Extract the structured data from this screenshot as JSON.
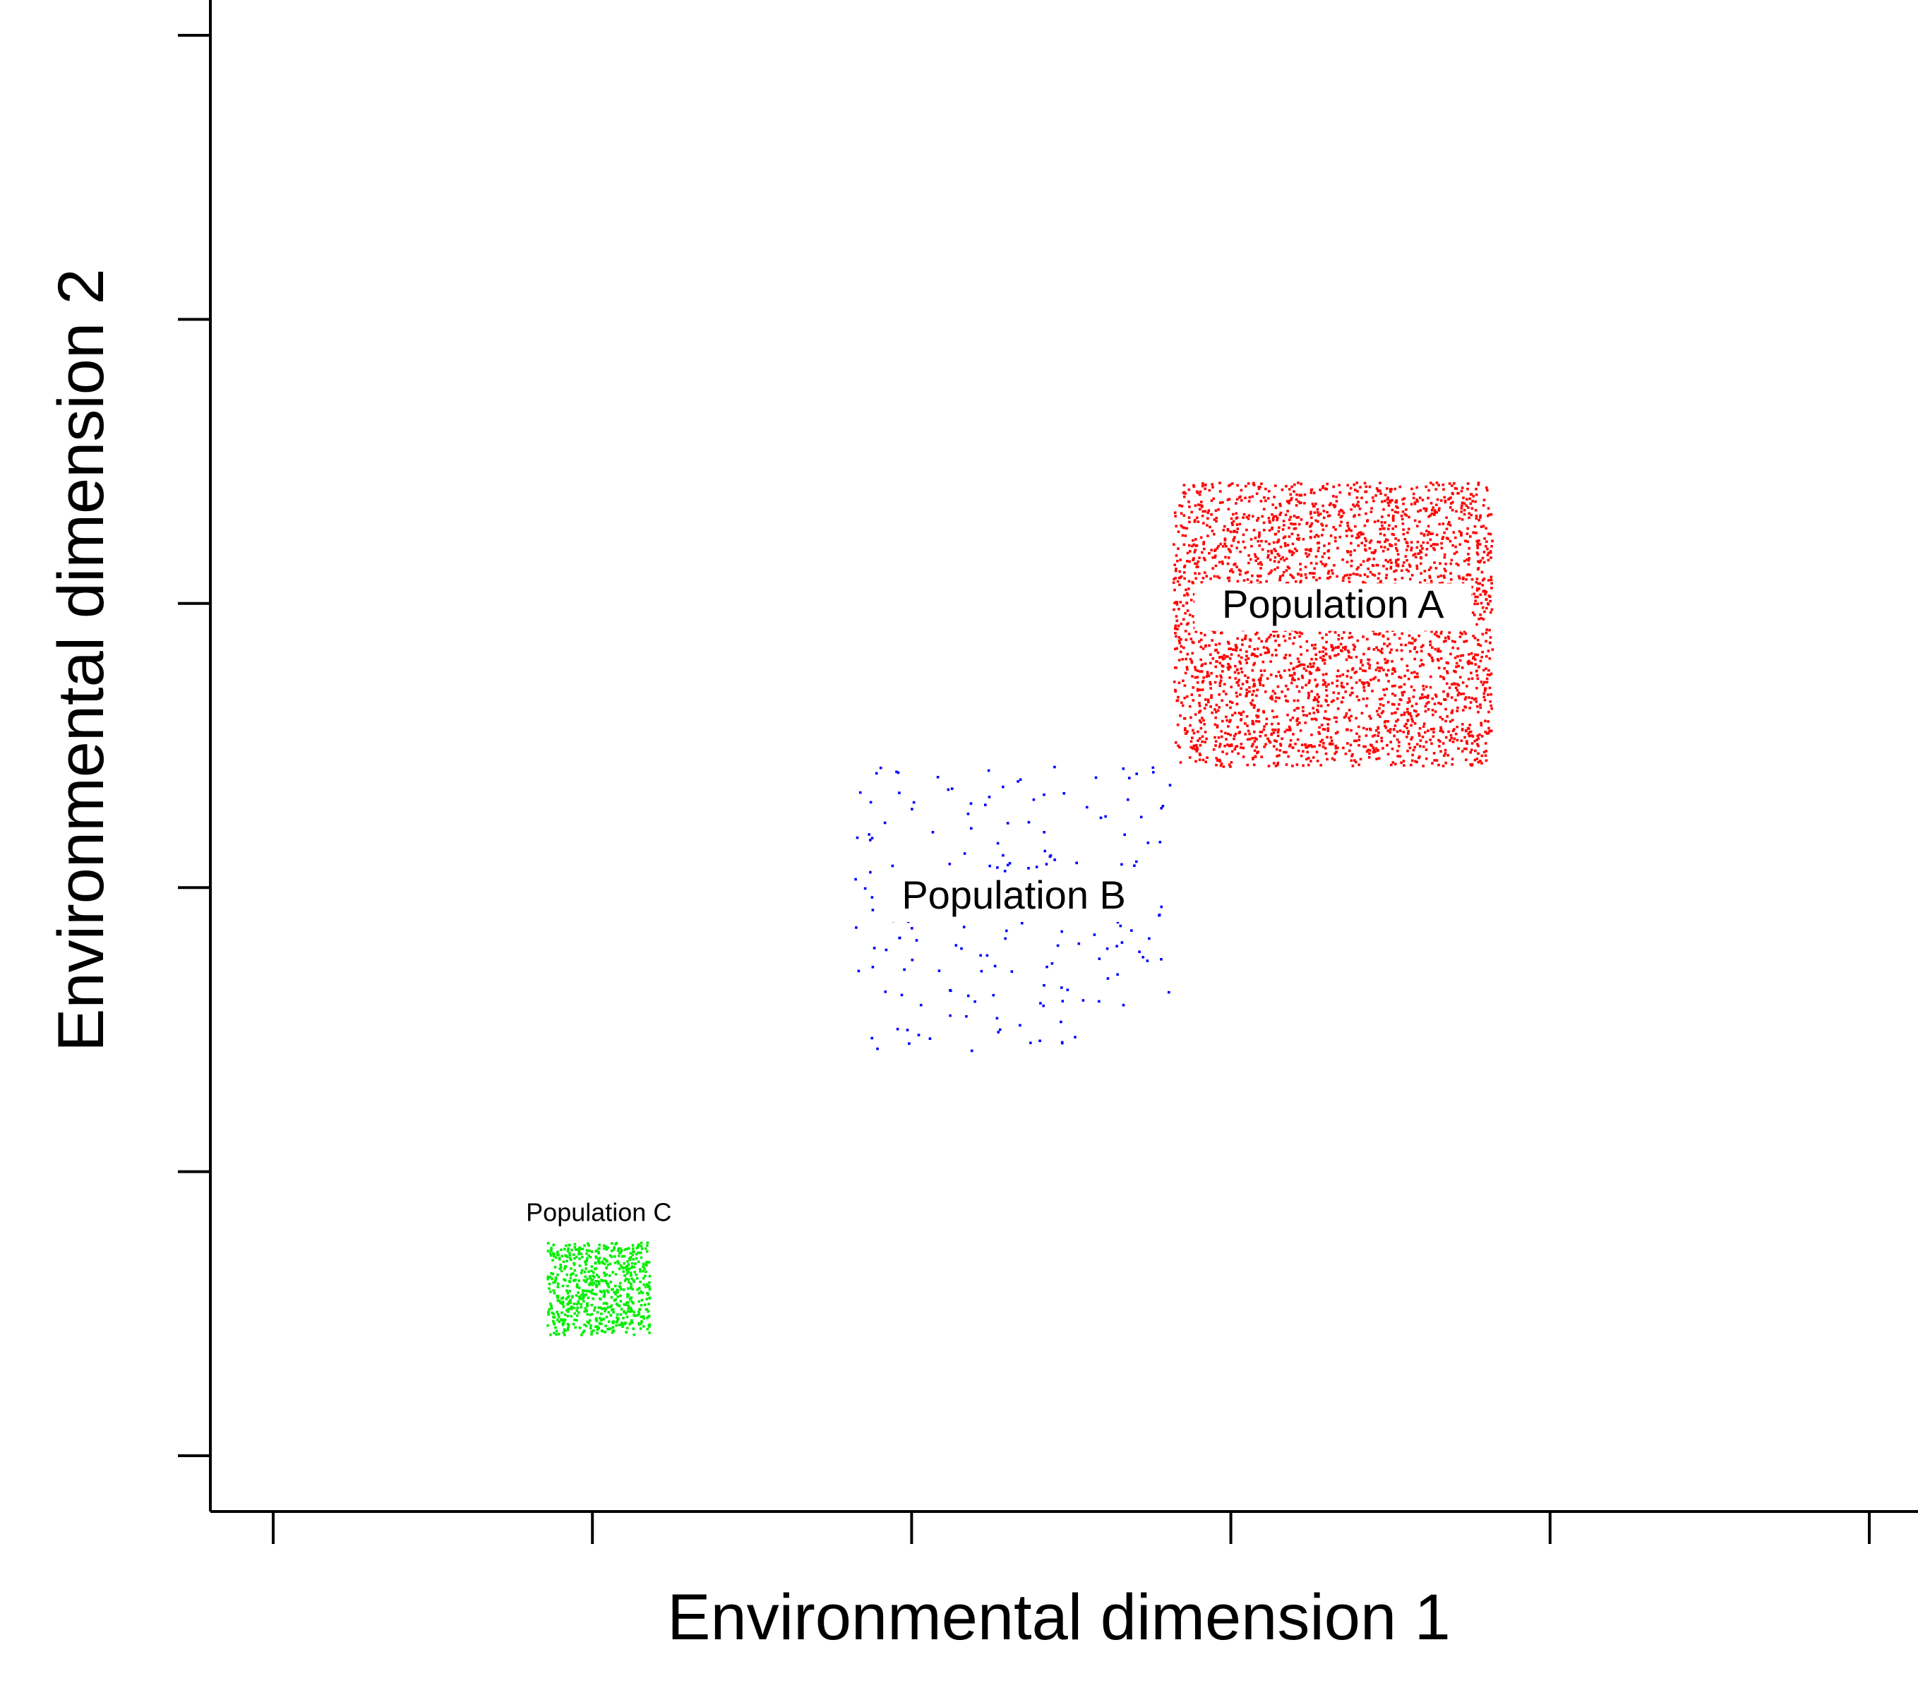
{
  "chart_data": {
    "type": "scatter",
    "xlabel": "Environmental dimension 1",
    "ylabel": "Environmental dimension 2",
    "xlim": [
      0,
      13
    ],
    "ylim": [
      0,
      13.5
    ],
    "x_ticks": [
      0.5,
      3,
      5.5,
      8,
      10.5,
      13
    ],
    "y_ticks": [
      1,
      3,
      5,
      7,
      9,
      11
    ],
    "x_tick_labels_shown": false,
    "y_tick_labels_shown": false,
    "grid": false,
    "legend": "none",
    "series": [
      {
        "name": "Population A",
        "color": "#ff0000",
        "point_count": 3000,
        "x_range": [
          7.55,
          10.05
        ],
        "y_range": [
          5.85,
          7.85
        ],
        "label_size": "large"
      },
      {
        "name": "Population B",
        "color": "#0000ff",
        "point_count": 190,
        "x_range": [
          5.05,
          7.55
        ],
        "y_range": [
          3.85,
          5.85
        ],
        "label_size": "large"
      },
      {
        "name": "Population C",
        "color": "#00ee00",
        "point_count": 650,
        "x_range": [
          2.65,
          3.45
        ],
        "y_range": [
          1.85,
          2.5
        ],
        "label_size": "small"
      }
    ]
  }
}
